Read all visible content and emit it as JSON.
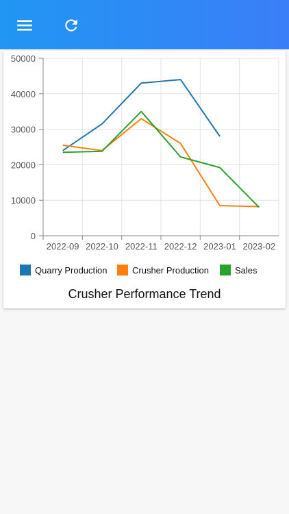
{
  "header": {
    "menu_icon": "menu-icon",
    "refresh_icon": "refresh-icon"
  },
  "chart_caption": "Crusher Performance Trend",
  "chart_data": {
    "type": "line",
    "categories": [
      "2022-09",
      "2022-10",
      "2022-11",
      "2022-12",
      "2023-01",
      "2023-02"
    ],
    "ylim": [
      0,
      50000
    ],
    "yticks": [
      0,
      10000,
      20000,
      30000,
      40000,
      50000
    ],
    "grid": true,
    "legend_position": "bottom",
    "series": [
      {
        "name": "Quarry Production",
        "color": "#1f77b4",
        "values": [
          24000,
          31500,
          43000,
          44000,
          28000,
          null
        ]
      },
      {
        "name": "Crusher Production",
        "color": "#ff7f0e",
        "values": [
          25500,
          24000,
          33000,
          26000,
          8500,
          8200
        ]
      },
      {
        "name": "Sales",
        "color": "#2ca02c",
        "values": [
          23500,
          23800,
          35000,
          22200,
          19200,
          8000
        ]
      }
    ]
  }
}
